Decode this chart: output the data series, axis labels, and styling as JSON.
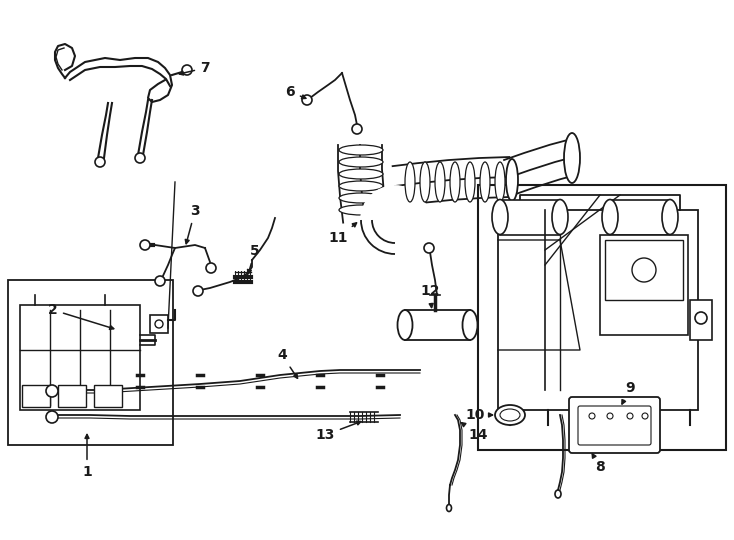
{
  "background_color": "#ffffff",
  "line_color": "#1a1a1a",
  "fig_width": 7.34,
  "fig_height": 5.4,
  "dpi": 100,
  "label_fontsize": 10,
  "label_fontweight": "bold"
}
